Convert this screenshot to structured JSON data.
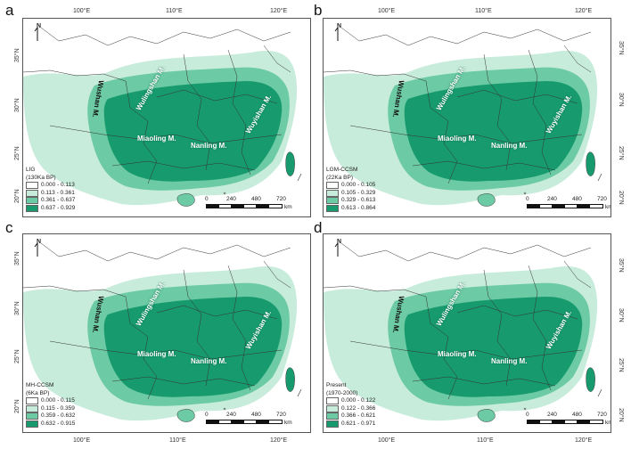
{
  "panels": [
    {
      "letter": "a",
      "legend_title": [
        "LIG",
        "(130Ka BP)"
      ],
      "classes": [
        "0.000 - 0.113",
        "0.113 - 0.361",
        "0.361 - 0.637",
        "0.637 - 0.929"
      ]
    },
    {
      "letter": "b",
      "legend_title": [
        "LGM-CCSM",
        "(22Ka BP)"
      ],
      "classes": [
        "0.000 - 0.105",
        "0.105 - 0.329",
        "0.329 - 0.613",
        "0.613 - 0.864"
      ]
    },
    {
      "letter": "c",
      "legend_title": [
        "MH-CCSM",
        "(6Ka BP)"
      ],
      "classes": [
        "0.000 - 0.115",
        "0.115 - 0.359",
        "0.359 - 0.632",
        "0.632 - 0.915"
      ]
    },
    {
      "letter": "d",
      "legend_title": [
        "Present",
        "(1970-2000)"
      ],
      "classes": [
        "0.000 - 0.122",
        "0.122 - 0.366",
        "0.366 - 0.621",
        "0.621 - 0.971"
      ]
    }
  ],
  "class_colors": [
    "#ffffff",
    "#c8ecdc",
    "#6ccaa4",
    "#179b6e"
  ],
  "longitudes": [
    "100°E",
    "110°E",
    "120°E"
  ],
  "latitudes": [
    "20°N",
    "25°N",
    "30°N",
    "35°N"
  ],
  "mountains": {
    "wushan": "Wushan M.",
    "wulingshan": "Wulingshan M.",
    "miaoling": "Miaoling M.",
    "nanling": "Nanling M.",
    "wuyishan": "Wuyishan M."
  },
  "scale": {
    "labels": [
      "0",
      "240",
      "480",
      "720"
    ],
    "unit": "km"
  },
  "north_label": "N"
}
